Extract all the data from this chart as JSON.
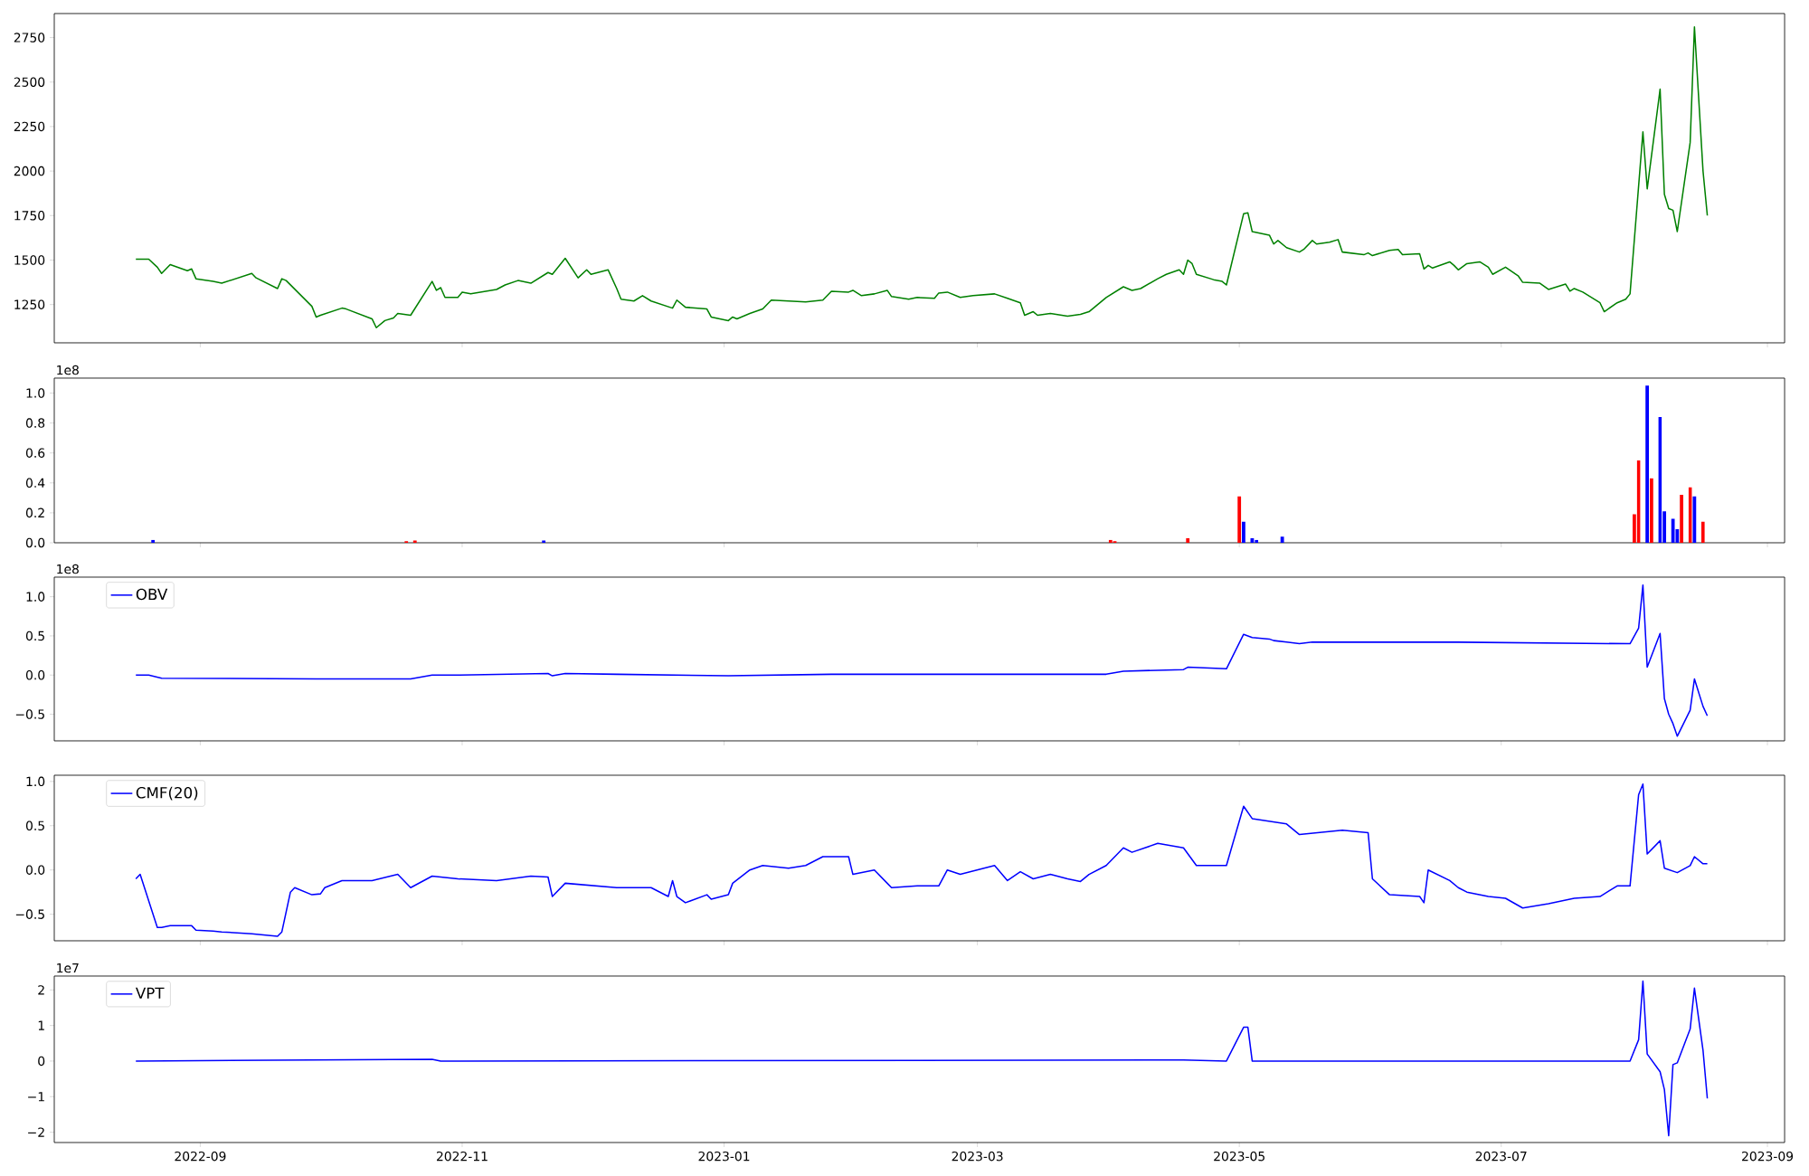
{
  "chart_data": [
    {
      "type": "line",
      "color": "#008000",
      "xlim": [
        "2022-07-29",
        "2023-09-05"
      ],
      "ylim": [
        1035,
        2885
      ],
      "yticks": [
        1250,
        1500,
        1750,
        2000,
        2250,
        2500,
        2750
      ],
      "tick_labels": "y",
      "xticks": [
        {
          "value": "2022-09-01",
          "label": null
        },
        {
          "value": "2022-11-01",
          "label": null
        },
        {
          "value": "2023-01-01",
          "label": null
        },
        {
          "value": "2023-03-01",
          "label": null
        },
        {
          "value": "2023-05-01",
          "label": null
        },
        {
          "value": "2023-07-01",
          "label": null
        },
        {
          "value": "2023-09-01",
          "label": null
        }
      ],
      "x": [
        "2022-08-17",
        "2022-08-20",
        "2022-08-22",
        "2022-08-23",
        "2022-08-25",
        "2022-08-29",
        "2022-08-30",
        "2022-08-31",
        "2022-09-04",
        "2022-09-06",
        "2022-09-13",
        "2022-09-14",
        "2022-09-19",
        "2022-09-20",
        "2022-09-21",
        "2022-09-27",
        "2022-09-28",
        "2022-09-29",
        "2022-10-04",
        "2022-10-05",
        "2022-10-11",
        "2022-10-12",
        "2022-10-14",
        "2022-10-16",
        "2022-10-17",
        "2022-10-20",
        "2022-10-25",
        "2022-10-26",
        "2022-10-27",
        "2022-10-28",
        "2022-10-31",
        "2022-11-01",
        "2022-11-03",
        "2022-11-09",
        "2022-11-11",
        "2022-11-14",
        "2022-11-17",
        "2022-11-21",
        "2022-11-22",
        "2022-11-25",
        "2022-11-28",
        "2022-11-30",
        "2022-12-01",
        "2022-12-05",
        "2022-12-07",
        "2022-12-08",
        "2022-12-11",
        "2022-12-13",
        "2022-12-15",
        "2022-12-20",
        "2022-12-21",
        "2022-12-23",
        "2022-12-28",
        "2022-12-29",
        "2023-01-02",
        "2023-01-03",
        "2023-01-04",
        "2023-01-07",
        "2023-01-10",
        "2023-01-12",
        "2023-01-16",
        "2023-01-20",
        "2023-01-24",
        "2023-01-26",
        "2023-01-30",
        "2023-01-31",
        "2023-02-02",
        "2023-02-05",
        "2023-02-08",
        "2023-02-09",
        "2023-02-13",
        "2023-02-15",
        "2023-02-19",
        "2023-02-20",
        "2023-02-22",
        "2023-02-25",
        "2023-02-28",
        "2023-03-05",
        "2023-03-08",
        "2023-03-11",
        "2023-03-12",
        "2023-03-14",
        "2023-03-15",
        "2023-03-18",
        "2023-03-22",
        "2023-03-25",
        "2023-03-27",
        "2023-03-31",
        "2023-04-04",
        "2023-04-06",
        "2023-04-08",
        "2023-04-12",
        "2023-04-14",
        "2023-04-17",
        "2023-04-18",
        "2023-04-19",
        "2023-04-20",
        "2023-04-21",
        "2023-04-25",
        "2023-04-27",
        "2023-04-28",
        "2023-05-02",
        "2023-05-03",
        "2023-05-04",
        "2023-05-08",
        "2023-05-09",
        "2023-05-10",
        "2023-05-12",
        "2023-05-15",
        "2023-05-16",
        "2023-05-18",
        "2023-05-19",
        "2023-05-22",
        "2023-05-24",
        "2023-05-25",
        "2023-05-30",
        "2023-05-31",
        "2023-06-01",
        "2023-06-05",
        "2023-06-07",
        "2023-06-08",
        "2023-06-12",
        "2023-06-13",
        "2023-06-14",
        "2023-06-15",
        "2023-06-19",
        "2023-06-20",
        "2023-06-21",
        "2023-06-23",
        "2023-06-26",
        "2023-06-28",
        "2023-06-29",
        "2023-07-02",
        "2023-07-05",
        "2023-07-06",
        "2023-07-10",
        "2023-07-12",
        "2023-07-16",
        "2023-07-17",
        "2023-07-18",
        "2023-07-20",
        "2023-07-24",
        "2023-07-25",
        "2023-07-28",
        "2023-07-30",
        "2023-07-31",
        "2023-08-03",
        "2023-08-04",
        "2023-08-07",
        "2023-08-08",
        "2023-08-09",
        "2023-08-10",
        "2023-08-11",
        "2023-08-14",
        "2023-08-15",
        "2023-08-17",
        "2023-08-18"
      ],
      "values": [
        1505,
        1505,
        1460,
        1425,
        1475,
        1440,
        1450,
        1395,
        1380,
        1370,
        1425,
        1400,
        1340,
        1395,
        1385,
        1240,
        1180,
        1190,
        1230,
        1225,
        1170,
        1120,
        1160,
        1175,
        1200,
        1190,
        1380,
        1330,
        1345,
        1290,
        1290,
        1320,
        1310,
        1335,
        1360,
        1385,
        1370,
        1430,
        1420,
        1510,
        1400,
        1445,
        1420,
        1445,
        1340,
        1280,
        1270,
        1300,
        1270,
        1230,
        1275,
        1235,
        1225,
        1180,
        1160,
        1180,
        1170,
        1200,
        1225,
        1275,
        1270,
        1265,
        1275,
        1325,
        1320,
        1330,
        1300,
        1310,
        1330,
        1295,
        1280,
        1290,
        1285,
        1315,
        1320,
        1290,
        1300,
        1310,
        1285,
        1260,
        1190,
        1210,
        1190,
        1200,
        1185,
        1195,
        1210,
        1290,
        1350,
        1330,
        1340,
        1395,
        1420,
        1445,
        1420,
        1500,
        1480,
        1420,
        1390,
        1380,
        1360,
        1760,
        1765,
        1660,
        1640,
        1590,
        1610,
        1570,
        1545,
        1560,
        1610,
        1590,
        1600,
        1615,
        1545,
        1530,
        1540,
        1525,
        1555,
        1560,
        1530,
        1535,
        1450,
        1470,
        1455,
        1490,
        1470,
        1445,
        1480,
        1490,
        1460,
        1420,
        1460,
        1410,
        1375,
        1370,
        1335,
        1365,
        1325,
        1340,
        1320,
        1260,
        1210,
        1260,
        1280,
        1310,
        2220,
        1900,
        2460,
        1870,
        1790,
        1780,
        1660,
        2160,
        2810,
        2000,
        1750
      ]
    },
    {
      "type": "bar",
      "xlim": [
        "2022-07-29",
        "2023-09-05"
      ],
      "ylim": [
        0,
        1.1
      ],
      "tick_labels": "y",
      "annotations": [
        "1e8"
      ],
      "yticks": [
        {
          "value": 0,
          "label": "0.0"
        },
        {
          "value": 0.2,
          "label": "0.2"
        },
        {
          "value": 0.4,
          "label": "0.4"
        },
        {
          "value": 0.6,
          "label": "0.6"
        },
        {
          "value": 0.8,
          "label": "0.8"
        },
        {
          "value": 1,
          "label": "1.0"
        }
      ],
      "xticks": [
        {
          "value": "2022-09-01",
          "label": null
        },
        {
          "value": "2022-11-01",
          "label": null
        },
        {
          "value": "2023-01-01",
          "label": null
        },
        {
          "value": "2023-03-01",
          "label": null
        },
        {
          "value": "2023-05-01",
          "label": null
        },
        {
          "value": "2023-07-01",
          "label": null
        },
        {
          "value": "2023-09-01",
          "label": null
        }
      ],
      "x": [
        "2022-08-21",
        "2022-10-19",
        "2022-10-21",
        "2022-11-20",
        "2023-04-01",
        "2023-04-02",
        "2023-04-19",
        "2023-05-01",
        "2023-05-02",
        "2023-05-04",
        "2023-05-05",
        "2023-05-11",
        "2023-08-01",
        "2023-08-02",
        "2023-08-04",
        "2023-08-05",
        "2023-08-07",
        "2023-08-08",
        "2023-08-10",
        "2023-08-11",
        "2023-08-12",
        "2023-08-14",
        "2023-08-15",
        "2023-08-17"
      ],
      "values": [
        0.02,
        0.01,
        0.015,
        0.015,
        0.02,
        0.01,
        0.03,
        0.31,
        0.14,
        0.03,
        0.02,
        0.04,
        0.19,
        0.55,
        1.05,
        0.43,
        0.84,
        0.21,
        0.16,
        0.09,
        0.32,
        0.37,
        0.31,
        0.14
      ],
      "colors": [
        "#0000ff",
        "#ff0000",
        "#ff0000",
        "#0000ff",
        "#ff0000",
        "#ff0000",
        "#ff0000",
        "#ff0000",
        "#0000ff",
        "#0000ff",
        "#0000ff",
        "#0000ff",
        "#ff0000",
        "#ff0000",
        "#0000ff",
        "#ff0000",
        "#0000ff",
        "#0000ff",
        "#0000ff",
        "#0000ff",
        "#ff0000",
        "#ff0000",
        "#0000ff",
        "#ff0000"
      ]
    },
    {
      "type": "line",
      "xlim": [
        "2022-07-29",
        "2023-09-05"
      ],
      "ylim": [
        -0.84,
        1.25
      ],
      "tick_labels": "y",
      "legend": "top left",
      "annotations": [
        "1e8"
      ],
      "yticks": [
        {
          "value": -0.5,
          "label": "−0.5"
        },
        {
          "value": 0,
          "label": "0.0"
        },
        {
          "value": 0.5,
          "label": "0.5"
        },
        {
          "value": 1,
          "label": "1.0"
        }
      ],
      "xticks": [
        {
          "value": "2022-09-01",
          "label": null
        },
        {
          "value": "2022-11-01",
          "label": null
        },
        {
          "value": "2023-01-01",
          "label": null
        },
        {
          "value": "2023-03-01",
          "label": null
        },
        {
          "value": "2023-05-01",
          "label": null
        },
        {
          "value": "2023-07-01",
          "label": null
        },
        {
          "value": "2023-09-01",
          "label": null
        }
      ],
      "x": [
        "2022-08-17",
        "2022-08-20",
        "2022-08-23",
        "2022-09-28",
        "2022-10-20",
        "2022-10-25",
        "2022-10-31",
        "2022-11-21",
        "2022-11-22",
        "2022-11-25",
        "2022-12-07",
        "2023-01-02",
        "2023-01-26",
        "2023-03-31",
        "2023-04-04",
        "2023-04-18",
        "2023-04-19",
        "2023-04-28",
        "2023-05-02",
        "2023-05-04",
        "2023-05-08",
        "2023-05-09",
        "2023-05-12",
        "2023-05-15",
        "2023-05-18",
        "2023-06-21",
        "2023-07-31",
        "2023-08-02",
        "2023-08-03",
        "2023-08-04",
        "2023-08-07",
        "2023-08-08",
        "2023-08-09",
        "2023-08-10",
        "2023-08-11",
        "2023-08-14",
        "2023-08-15",
        "2023-08-17",
        "2023-08-18"
      ],
      "series": [
        {
          "name": "OBV",
          "color": "#0000ff",
          "values": [
            0.0,
            0.0,
            -0.04,
            -0.05,
            -0.05,
            0.0,
            0.0,
            0.02,
            -0.01,
            0.02,
            0.01,
            -0.01,
            0.01,
            0.01,
            0.05,
            0.07,
            0.1,
            0.08,
            0.52,
            0.48,
            0.46,
            0.44,
            0.42,
            0.4,
            0.42,
            0.42,
            0.4,
            0.6,
            1.15,
            0.1,
            0.53,
            -0.3,
            -0.5,
            -0.62,
            -0.78,
            -0.45,
            -0.05,
            -0.4,
            -0.52
          ]
        }
      ]
    },
    {
      "type": "line",
      "xlim": [
        "2022-07-29",
        "2023-09-05"
      ],
      "ylim": [
        -0.8,
        1.07
      ],
      "tick_labels": "y",
      "legend": "top left",
      "yticks": [
        {
          "value": -0.5,
          "label": "−0.5"
        },
        {
          "value": 0,
          "label": "0.0"
        },
        {
          "value": 0.5,
          "label": "0.5"
        },
        {
          "value": 1,
          "label": "1.0"
        }
      ],
      "xticks": [
        {
          "value": "2022-09-01",
          "label": null
        },
        {
          "value": "2022-11-01",
          "label": null
        },
        {
          "value": "2023-01-01",
          "label": null
        },
        {
          "value": "2023-03-01",
          "label": null
        },
        {
          "value": "2023-05-01",
          "label": null
        },
        {
          "value": "2023-07-01",
          "label": null
        },
        {
          "value": "2023-09-01",
          "label": null
        }
      ],
      "x": [
        "2022-08-17",
        "2022-08-18",
        "2022-08-22",
        "2022-08-23",
        "2022-08-25",
        "2022-08-30",
        "2022-08-31",
        "2022-09-04",
        "2022-09-06",
        "2022-09-13",
        "2022-09-19",
        "2022-09-20",
        "2022-09-22",
        "2022-09-23",
        "2022-09-27",
        "2022-09-29",
        "2022-09-30",
        "2022-10-04",
        "2022-10-11",
        "2022-10-17",
        "2022-10-20",
        "2022-10-25",
        "2022-10-31",
        "2022-11-09",
        "2022-11-17",
        "2022-11-21",
        "2022-11-22",
        "2022-11-25",
        "2022-12-07",
        "2022-12-15",
        "2022-12-19",
        "2022-12-20",
        "2022-12-21",
        "2022-12-23",
        "2022-12-28",
        "2022-12-29",
        "2023-01-02",
        "2023-01-03",
        "2023-01-07",
        "2023-01-10",
        "2023-01-16",
        "2023-01-20",
        "2023-01-24",
        "2023-01-26",
        "2023-01-30",
        "2023-01-31",
        "2023-02-05",
        "2023-02-08",
        "2023-02-09",
        "2023-02-15",
        "2023-02-20",
        "2023-02-22",
        "2023-02-25",
        "2023-03-05",
        "2023-03-08",
        "2023-03-11",
        "2023-03-14",
        "2023-03-18",
        "2023-03-22",
        "2023-03-25",
        "2023-03-27",
        "2023-03-31",
        "2023-04-04",
        "2023-04-06",
        "2023-04-12",
        "2023-04-18",
        "2023-04-21",
        "2023-04-28",
        "2023-05-02",
        "2023-05-04",
        "2023-05-12",
        "2023-05-15",
        "2023-05-25",
        "2023-05-31",
        "2023-06-01",
        "2023-06-05",
        "2023-06-12",
        "2023-06-13",
        "2023-06-14",
        "2023-06-19",
        "2023-06-21",
        "2023-06-23",
        "2023-06-28",
        "2023-07-02",
        "2023-07-06",
        "2023-07-12",
        "2023-07-18",
        "2023-07-24",
        "2023-07-28",
        "2023-07-31",
        "2023-08-02",
        "2023-08-03",
        "2023-08-04",
        "2023-08-07",
        "2023-08-08",
        "2023-08-11",
        "2023-08-14",
        "2023-08-15",
        "2023-08-17",
        "2023-08-18"
      ],
      "series": [
        {
          "name": "CMF(20)",
          "color": "#0000ff",
          "values": [
            -0.1,
            -0.05,
            -0.65,
            -0.65,
            -0.63,
            -0.63,
            -0.68,
            -0.69,
            -0.7,
            -0.72,
            -0.75,
            -0.7,
            -0.25,
            -0.2,
            -0.28,
            -0.27,
            -0.2,
            -0.12,
            -0.12,
            -0.05,
            -0.2,
            -0.07,
            -0.1,
            -0.12,
            -0.07,
            -0.08,
            -0.3,
            -0.15,
            -0.2,
            -0.2,
            -0.3,
            -0.12,
            -0.3,
            -0.37,
            -0.28,
            -0.33,
            -0.28,
            -0.15,
            0.0,
            0.05,
            0.02,
            0.05,
            0.15,
            0.15,
            0.15,
            -0.05,
            0.0,
            -0.15,
            -0.2,
            -0.18,
            -0.18,
            0.0,
            -0.05,
            0.05,
            -0.12,
            -0.02,
            -0.1,
            -0.05,
            -0.1,
            -0.13,
            -0.05,
            0.05,
            0.25,
            0.2,
            0.3,
            0.25,
            0.05,
            0.05,
            0.72,
            0.58,
            0.52,
            0.4,
            0.45,
            0.42,
            -0.1,
            -0.28,
            -0.3,
            -0.37,
            0.0,
            -0.12,
            -0.2,
            -0.25,
            -0.3,
            -0.32,
            -0.43,
            -0.38,
            -0.32,
            -0.3,
            -0.18,
            -0.18,
            0.85,
            0.97,
            0.18,
            0.33,
            0.02,
            -0.03,
            0.05,
            0.15,
            0.07,
            0.07
          ]
        }
      ]
    },
    {
      "type": "line",
      "xlim": [
        "2022-07-29",
        "2023-09-05"
      ],
      "ylim": [
        -2.29,
        2.39
      ],
      "legend": "top left",
      "annotations": [
        "1e7"
      ],
      "yticks": [
        {
          "value": -2,
          "label": "−2"
        },
        {
          "value": -1,
          "label": "−1"
        },
        0,
        1,
        2
      ],
      "xticks": [
        {
          "value": "2022-09-01",
          "label": "2022-09"
        },
        {
          "value": "2022-11-01",
          "label": "2022-11"
        },
        {
          "value": "2023-01-01",
          "label": "2023-01"
        },
        {
          "value": "2023-03-01",
          "label": "2023-03"
        },
        {
          "value": "2023-05-01",
          "label": "2023-05"
        },
        {
          "value": "2023-07-01",
          "label": "2023-07"
        },
        {
          "value": "2023-09-01",
          "label": "2023-09"
        }
      ],
      "x": [
        "2022-08-17",
        "2022-10-25",
        "2022-10-27",
        "2023-04-18",
        "2023-04-28",
        "2023-05-02",
        "2023-05-03",
        "2023-05-04",
        "2023-07-31",
        "2023-08-02",
        "2023-08-03",
        "2023-08-04",
        "2023-08-07",
        "2023-08-08",
        "2023-08-09",
        "2023-08-10",
        "2023-08-11",
        "2023-08-14",
        "2023-08-15",
        "2023-08-17",
        "2023-08-18"
      ],
      "series": [
        {
          "name": "VPT",
          "color": "#0000ff",
          "values": [
            0,
            0.05,
            0,
            0.03,
            0,
            0.95,
            0.95,
            0,
            0,
            0.6,
            2.25,
            0.2,
            -0.3,
            -0.8,
            -2.1,
            -0.1,
            -0.05,
            0.9,
            2.05,
            0.3,
            -1.05
          ]
        }
      ]
    }
  ]
}
